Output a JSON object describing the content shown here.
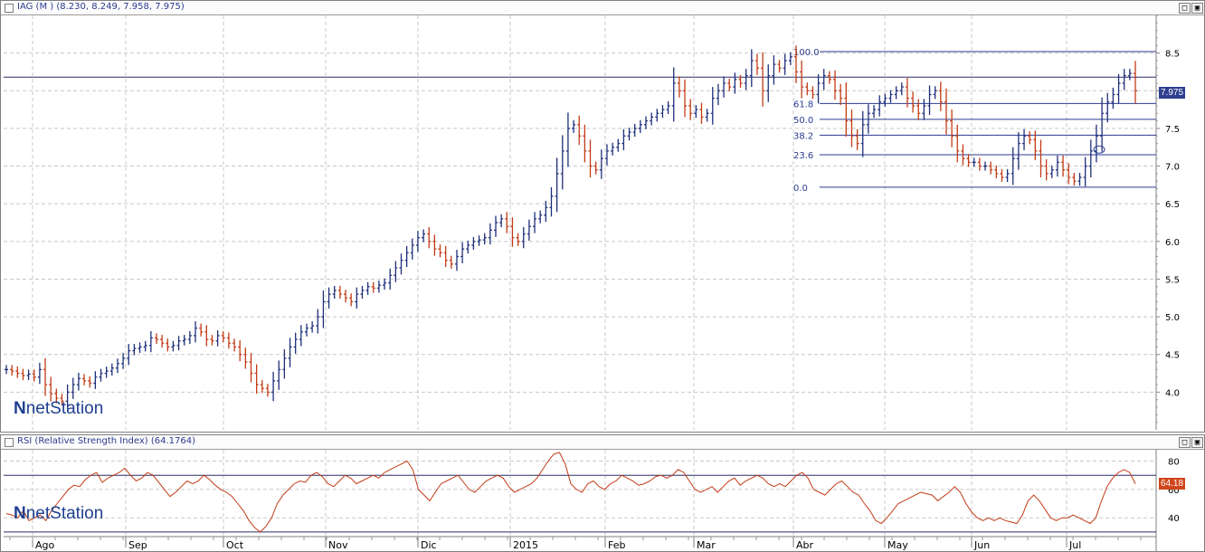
{
  "price_panel": {
    "title": "IAG (M ) (8.230, 8.249, 7.958, 7.975)",
    "last_price_label": "7.975",
    "watermark": "netStation",
    "restore_button": "□",
    "maximize_button": "▣"
  },
  "rsi_panel": {
    "title": "RSI (Relative Strength Index) (64.1764)",
    "last_value_label": "64.18",
    "watermark": "netStation",
    "restore_button": "□",
    "maximize_button": "▣"
  },
  "colors": {
    "up": "#1f2f7a",
    "down": "#c23b16",
    "grid": "#c8c8c8",
    "fib": "#2b3a8f",
    "rsi_line": "#c23b16",
    "price_tag_bg": "#2e3f8f",
    "rsi_tag_bg": "#d0451b"
  },
  "chart_data": [
    {
      "type": "ohlc",
      "title": "IAG (M ) (8.230, 8.249, 7.958, 7.975)",
      "ylim": [
        3.5,
        9.0
      ],
      "y_ticks": [
        "4.0",
        "4.5",
        "5.0",
        "5.5",
        "6.0",
        "6.5",
        "7.0",
        "7.5",
        "8.0",
        "8.5"
      ],
      "x_labels": [
        "Ago",
        "Sep",
        "Oct",
        "Nov",
        "Dic",
        "2015",
        "Feb",
        "Mar",
        "Abr",
        "May",
        "Jun",
        "Jul"
      ],
      "grid": true,
      "horizontal_line": 8.18,
      "last_value": 7.975,
      "fibonacci": {
        "high": 8.52,
        "low": 6.72,
        "levels": [
          {
            "label": "100.0",
            "value": 8.52
          },
          {
            "label": "61.8",
            "value": 7.83
          },
          {
            "label": "50.0",
            "value": 7.62
          },
          {
            "label": "38.2",
            "value": 7.41
          },
          {
            "label": "23.6",
            "value": 7.15
          },
          {
            "label": "0.0",
            "value": 6.72
          }
        ]
      },
      "close_series": [
        4.3,
        4.28,
        4.25,
        4.22,
        4.24,
        4.2,
        4.3,
        4.1,
        3.98,
        3.92,
        3.88,
        4.0,
        4.1,
        4.18,
        4.15,
        4.12,
        4.2,
        4.25,
        4.28,
        4.32,
        4.38,
        4.45,
        4.55,
        4.58,
        4.6,
        4.62,
        4.72,
        4.7,
        4.65,
        4.6,
        4.62,
        4.68,
        4.7,
        4.75,
        4.85,
        4.8,
        4.7,
        4.68,
        4.75,
        4.72,
        4.65,
        4.6,
        4.5,
        4.4,
        4.25,
        4.1,
        4.05,
        4.0,
        4.15,
        4.3,
        4.45,
        4.6,
        4.7,
        4.8,
        4.85,
        4.88,
        5.0,
        5.2,
        5.3,
        5.35,
        5.3,
        5.25,
        5.2,
        5.3,
        5.35,
        5.4,
        5.38,
        5.42,
        5.45,
        5.55,
        5.65,
        5.75,
        5.85,
        5.95,
        6.05,
        6.1,
        6.0,
        5.9,
        5.85,
        5.75,
        5.7,
        5.8,
        5.9,
        5.95,
        6.0,
        6.02,
        6.05,
        6.15,
        6.25,
        6.3,
        6.2,
        6.05,
        6.0,
        6.1,
        6.2,
        6.3,
        6.35,
        6.45,
        6.6,
        6.9,
        7.2,
        7.5,
        7.55,
        7.4,
        7.2,
        7.0,
        6.95,
        7.1,
        7.2,
        7.25,
        7.3,
        7.4,
        7.45,
        7.5,
        7.55,
        7.6,
        7.65,
        7.7,
        7.75,
        7.8,
        8.1,
        8.0,
        7.8,
        7.7,
        7.75,
        7.65,
        7.7,
        7.9,
        8.0,
        8.1,
        8.05,
        8.15,
        8.1,
        8.2,
        8.4,
        8.3,
        8.0,
        8.2,
        8.35,
        8.3,
        8.4,
        8.45,
        8.25,
        8.05,
        8.0,
        7.95,
        8.1,
        8.2,
        8.15,
        8.0,
        7.9,
        7.6,
        7.4,
        7.3,
        7.55,
        7.7,
        7.75,
        7.85,
        7.9,
        7.95,
        8.0,
        8.05,
        7.9,
        7.8,
        7.7,
        7.8,
        7.95,
        8.0,
        7.85,
        7.6,
        7.4,
        7.2,
        7.1,
        7.05,
        7.05,
        7.0,
        7.0,
        6.95,
        6.9,
        6.85,
        6.9,
        7.1,
        7.3,
        7.4,
        7.35,
        7.2,
        7.0,
        6.9,
        6.95,
        7.05,
        6.95,
        6.85,
        6.8,
        6.85,
        7.0,
        7.2,
        7.4,
        7.7,
        7.85,
        7.95,
        8.1,
        8.2,
        8.23,
        8.0
      ]
    },
    {
      "type": "line",
      "title": "RSI (Relative Strength Index) (64.1764)",
      "ylim": [
        28,
        88
      ],
      "y_ticks": [
        "40",
        "60",
        "80"
      ],
      "reference_lines": [
        70,
        30
      ],
      "last_value": 64.18,
      "values": [
        43,
        42,
        40,
        45,
        38,
        40,
        42,
        38,
        45,
        50,
        55,
        60,
        63,
        62,
        67,
        70,
        72,
        65,
        68,
        70,
        72,
        75,
        70,
        66,
        68,
        72,
        70,
        65,
        60,
        55,
        58,
        62,
        66,
        64,
        66,
        70,
        67,
        63,
        60,
        58,
        55,
        50,
        45,
        38,
        33,
        30,
        34,
        40,
        50,
        56,
        60,
        64,
        66,
        65,
        70,
        72,
        69,
        64,
        62,
        66,
        70,
        68,
        64,
        66,
        68,
        70,
        68,
        72,
        74,
        76,
        78,
        80,
        74,
        60,
        56,
        52,
        58,
        64,
        66,
        68,
        70,
        65,
        60,
        58,
        62,
        66,
        68,
        70,
        68,
        62,
        58,
        60,
        62,
        64,
        68,
        74,
        80,
        85,
        86,
        78,
        64,
        60,
        58,
        64,
        66,
        62,
        60,
        64,
        66,
        70,
        68,
        66,
        63,
        64,
        66,
        69,
        70,
        68,
        70,
        74,
        72,
        66,
        60,
        58,
        60,
        62,
        58,
        62,
        66,
        68,
        63,
        66,
        68,
        70,
        68,
        64,
        62,
        64,
        62,
        66,
        70,
        72,
        68,
        60,
        58,
        56,
        60,
        64,
        66,
        62,
        58,
        56,
        50,
        45,
        38,
        36,
        40,
        45,
        50,
        52,
        54,
        56,
        58,
        57,
        56,
        52,
        55,
        58,
        62,
        58,
        50,
        44,
        40,
        38,
        40,
        38,
        40,
        38,
        37,
        36,
        42,
        52,
        56,
        52,
        46,
        40,
        38,
        40,
        40,
        42,
        40,
        38,
        36,
        40,
        52,
        62,
        68,
        72,
        74,
        72,
        64
      ]
    }
  ]
}
